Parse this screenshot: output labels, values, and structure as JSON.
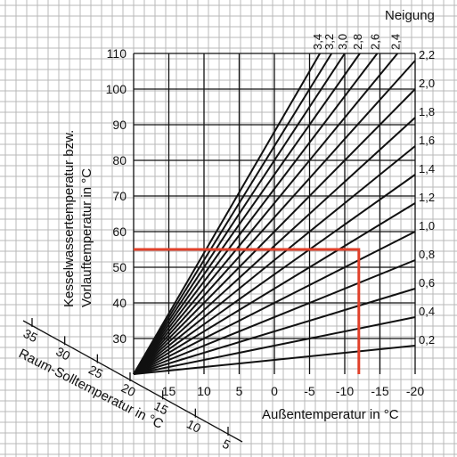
{
  "chart_data": {
    "type": "line",
    "title": "",
    "ylabel_line1": "Kesselwassertemperatur bzw.",
    "ylabel_line2": "Vorlauftemperatur in °C",
    "xlabel": "Außentemperatur in °C",
    "room_axis_label": "Raum-Solltemperatur in °C",
    "legend_title": "Neigung",
    "y_ticks": [
      "30",
      "40",
      "50",
      "60",
      "70",
      "80",
      "90",
      "100",
      "110"
    ],
    "x_ticks": [
      "20",
      "15",
      "10",
      "5",
      "0",
      "-5",
      "-10",
      "-15",
      "-20"
    ],
    "room_ticks": [
      "35",
      "30",
      "25",
      "20",
      "15",
      "10",
      "5"
    ],
    "ylim": [
      20,
      110
    ],
    "xlim": [
      20,
      -20
    ],
    "x_reversed": true,
    "origin": {
      "outdoor_temp": 20,
      "flow_temp": 20
    },
    "grid": true,
    "slopes": [
      {
        "value": 0.2,
        "label": "0,2"
      },
      {
        "value": 0.4,
        "label": "0,4"
      },
      {
        "value": 0.6,
        "label": "0,6"
      },
      {
        "value": 0.8,
        "label": "0,8"
      },
      {
        "value": 1.0,
        "label": "1,0"
      },
      {
        "value": 1.2,
        "label": "1,2"
      },
      {
        "value": 1.4,
        "label": "1,4"
      },
      {
        "value": 1.6,
        "label": "1,6"
      },
      {
        "value": 1.8,
        "label": "1,8"
      },
      {
        "value": 2.0,
        "label": "2,0"
      },
      {
        "value": 2.2,
        "label": "2,2"
      },
      {
        "value": 2.4,
        "label": "2,4"
      },
      {
        "value": 2.6,
        "label": "2,6"
      },
      {
        "value": 2.8,
        "label": "2,8"
      },
      {
        "value": 3.0,
        "label": "3,0"
      },
      {
        "value": 3.2,
        "label": "3,2"
      },
      {
        "value": 3.4,
        "label": "3,4"
      }
    ],
    "highlight": {
      "outdoor_temp": -12,
      "flow_temp": 55
    },
    "colors": {
      "curves": "#111111",
      "highlight": "#e0402a",
      "grid": "#b9b9b9"
    }
  }
}
